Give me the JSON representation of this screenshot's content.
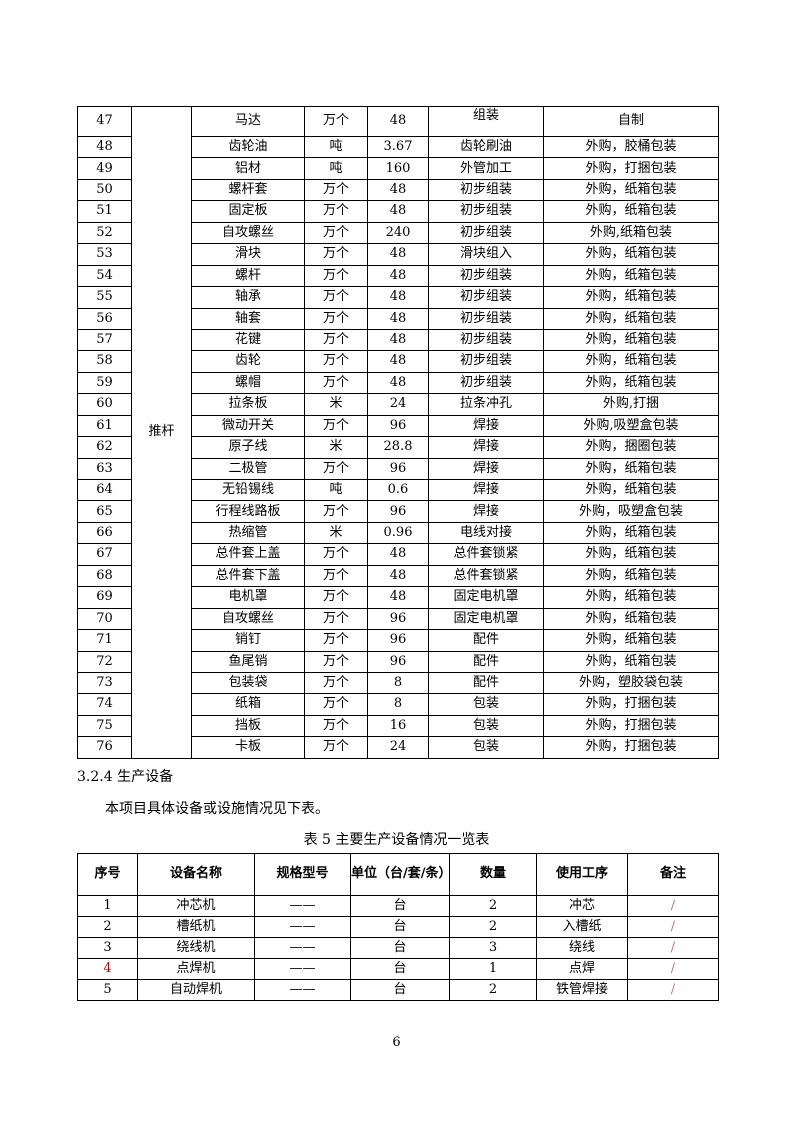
{
  "table1": {
    "group": "推杆",
    "rows": [
      [
        "47",
        "马达",
        "万个",
        "48",
        "组装",
        "自制"
      ],
      [
        "48",
        "齿轮油",
        "吨",
        "3.67",
        "齿轮刷油",
        "外购，胶桶包装"
      ],
      [
        "49",
        "铝材",
        "吨",
        "160",
        "外管加工",
        "外购，打捆包装"
      ],
      [
        "50",
        "螺杆套",
        "万个",
        "48",
        "初步组装",
        "外购，纸箱包装"
      ],
      [
        "51",
        "固定板",
        "万个",
        "48",
        "初步组装",
        "外购，纸箱包装"
      ],
      [
        "52",
        "自攻螺丝",
        "万个",
        "240",
        "初步组装",
        "外购,纸箱包装"
      ],
      [
        "53",
        "滑块",
        "万个",
        "48",
        "滑块组入",
        "外购，纸箱包装"
      ],
      [
        "54",
        "螺杆",
        "万个",
        "48",
        "初步组装",
        "外购，纸箱包装"
      ],
      [
        "55",
        "轴承",
        "万个",
        "48",
        "初步组装",
        "外购，纸箱包装"
      ],
      [
        "56",
        "轴套",
        "万个",
        "48",
        "初步组装",
        "外购，纸箱包装"
      ],
      [
        "57",
        "花键",
        "万个",
        "48",
        "初步组装",
        "外购，纸箱包装"
      ],
      [
        "58",
        "齿轮",
        "万个",
        "48",
        "初步组装",
        "外购，纸箱包装"
      ],
      [
        "59",
        "螺帽",
        "万个",
        "48",
        "初步组装",
        "外购，纸箱包装"
      ],
      [
        "60",
        "拉条板",
        "米",
        "24",
        "拉条冲孔",
        "外购,打捆"
      ],
      [
        "61",
        "微动开关",
        "万个",
        "96",
        "焊接",
        "外购,吸塑盒包装"
      ],
      [
        "62",
        "原子线",
        "米",
        "28.8",
        "焊接",
        "外购，捆圈包装"
      ],
      [
        "63",
        "二极管",
        "万个",
        "96",
        "焊接",
        "外购，纸箱包装"
      ],
      [
        "64",
        "无铅锡线",
        "吨",
        "0.6",
        "焊接",
        "外购，纸箱包装"
      ],
      [
        "65",
        "行程线路板",
        "万个",
        "96",
        "焊接",
        "外购，吸塑盒包装"
      ],
      [
        "66",
        "热缩管",
        "米",
        "0.96",
        "电线对接",
        "外购，纸箱包装"
      ],
      [
        "67",
        "总件套上盖",
        "万个",
        "48",
        "总件套锁紧",
        "外购，纸箱包装"
      ],
      [
        "68",
        "总件套下盖",
        "万个",
        "48",
        "总件套锁紧",
        "外购，纸箱包装"
      ],
      [
        "69",
        "电机罩",
        "万个",
        "48",
        "固定电机罩",
        "外购，纸箱包装"
      ],
      [
        "70",
        "自攻螺丝",
        "万个",
        "96",
        "固定电机罩",
        "外购，纸箱包装"
      ],
      [
        "71",
        "销钉",
        "万个",
        "96",
        "配件",
        "外购，纸箱包装"
      ],
      [
        "72",
        "鱼尾销",
        "万个",
        "96",
        "配件",
        "外购，纸箱包装"
      ],
      [
        "73",
        "包装袋",
        "万个",
        "8",
        "配件",
        "外购，塑胶袋包装"
      ],
      [
        "74",
        "纸箱",
        "万个",
        "8",
        "包装",
        "外购，打捆包装"
      ],
      [
        "75",
        "挡板",
        "万个",
        "16",
        "包装",
        "外购，打捆包装"
      ],
      [
        "76",
        "卡板",
        "万个",
        "24",
        "包装",
        "外购，打捆包装"
      ]
    ]
  },
  "section_heading": "3.2.4  生产设备",
  "intro": "本项目具体设备或设施情况见下表。",
  "table2": {
    "caption": "表 5    主要生产设备情况一览表",
    "headers": [
      "序号",
      "设备名称",
      "规格型号",
      "单位（台/套/条）",
      "数量",
      "使用工序",
      "备注"
    ],
    "rows": [
      [
        "1",
        "冲芯机",
        "——",
        "台",
        "2",
        "冲芯",
        "/"
      ],
      [
        "2",
        "槽纸机",
        "——",
        "台",
        "2",
        "入槽纸",
        "/"
      ],
      [
        "3",
        "绕线机",
        "——",
        "台",
        "3",
        "绕线",
        "/"
      ],
      [
        "4",
        "点焊机",
        "——",
        "台",
        "1",
        "点焊",
        "/"
      ],
      [
        "5",
        "自动焊机",
        "——",
        "台",
        "2",
        "铁管焊接",
        "/"
      ]
    ]
  },
  "page_number": "6",
  "colors": {
    "highlight_red": "#c00000"
  }
}
